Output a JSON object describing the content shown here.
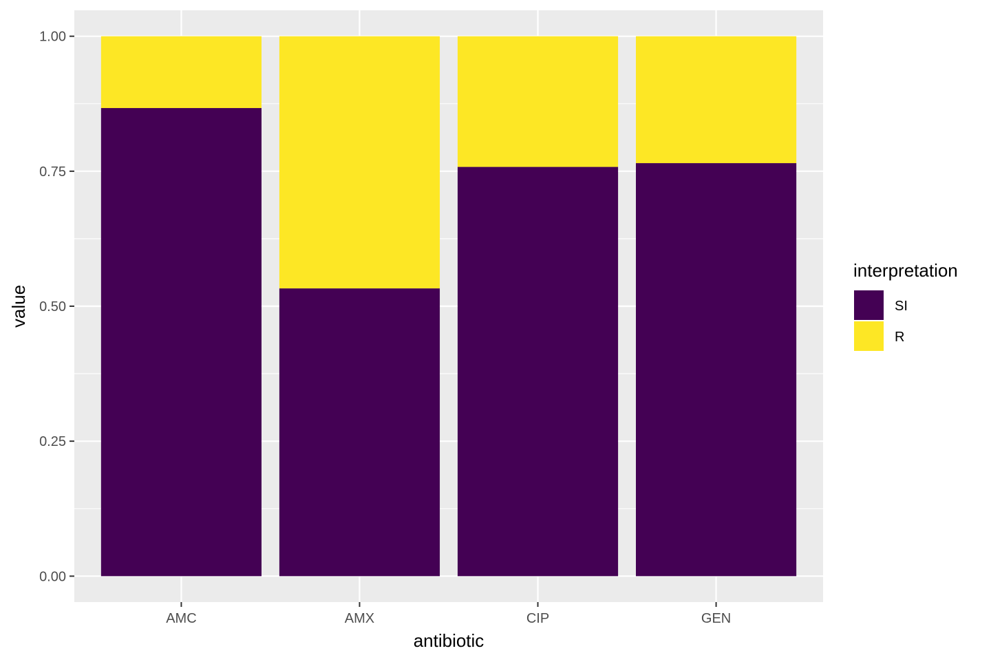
{
  "chart_data": {
    "type": "bar",
    "stacked": true,
    "categories": [
      "AMC",
      "AMX",
      "CIP",
      "GEN"
    ],
    "series": [
      {
        "name": "SI",
        "color": "#440154",
        "values": [
          0.867,
          0.533,
          0.758,
          0.765
        ]
      },
      {
        "name": "R",
        "color": "#FDE725",
        "values": [
          0.133,
          0.467,
          0.242,
          0.235
        ]
      }
    ],
    "xlabel": "antibiotic",
    "ylabel": "value",
    "ylim": [
      -0.048,
      1.048
    ],
    "yticks": [
      {
        "value": 0,
        "label": "0.00"
      },
      {
        "value": 0.25,
        "label": "0.25"
      },
      {
        "value": 0.5,
        "label": "0.50"
      },
      {
        "value": 0.75,
        "label": "0.75"
      },
      {
        "value": 1,
        "label": "1.00"
      }
    ],
    "grid": true,
    "legend": {
      "title": "interpretation",
      "position": "right"
    },
    "panel_background": "#EBEBEB",
    "gridline_color": "#FFFFFF"
  }
}
